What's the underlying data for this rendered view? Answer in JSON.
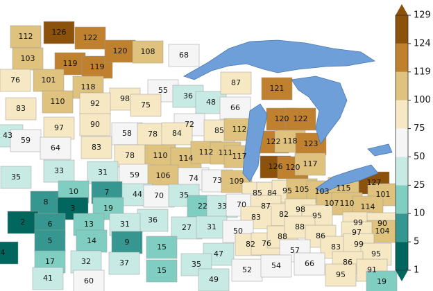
{
  "chart_data": {
    "type": "choropleth",
    "values": [
      112,
      126,
      122,
      103,
      119,
      119,
      120,
      108,
      76,
      101,
      118,
      68,
      55,
      98,
      75,
      36,
      48,
      66,
      87,
      121,
      83,
      110,
      92,
      72,
      97,
      90,
      58,
      78,
      84,
      85,
      112,
      120,
      122,
      43,
      59,
      64,
      83,
      78,
      110,
      114,
      112,
      111,
      117,
      122,
      118,
      123,
      35,
      33,
      31,
      59,
      106,
      74,
      73,
      109,
      126,
      120,
      117,
      127,
      85,
      84,
      95,
      105,
      103,
      115,
      101,
      8,
      10,
      7,
      44,
      70,
      35,
      22,
      33,
      70,
      87,
      82,
      98,
      107,
      110,
      114,
      2,
      3,
      19,
      83,
      95,
      36,
      27,
      31,
      50,
      82,
      76,
      88,
      88,
      86,
      99,
      90,
      104,
      6,
      13,
      31,
      97,
      5,
      14,
      9,
      15,
      47,
      57,
      83,
      99,
      95,
      4,
      17,
      32,
      37,
      15,
      35,
      52,
      54,
      66,
      86,
      91,
      60,
      41,
      49,
      95,
      19
    ],
    "colorbar": {
      "ticks": [
        1,
        5,
        10,
        25,
        50,
        75,
        100,
        119,
        124,
        129
      ],
      "colors": [
        "#01665e",
        "#35978f",
        "#80cdc1",
        "#c7eae5",
        "#f5f5f5",
        "#f6e8c3",
        "#dfc27d",
        "#bf812d",
        "#8c510a"
      ]
    }
  }
}
